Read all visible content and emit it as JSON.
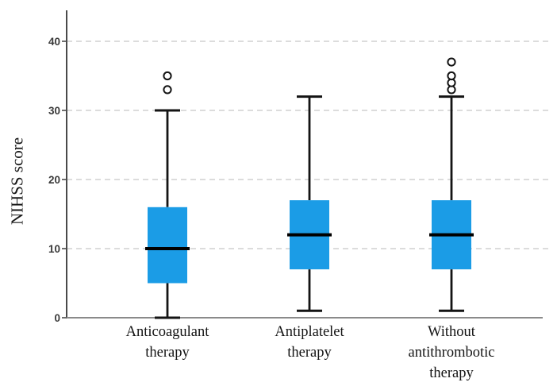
{
  "chart_data": {
    "type": "box",
    "title": "",
    "xlabel": "",
    "ylabel": "NIHSS score",
    "ylim": [
      0,
      44
    ],
    "yticks": [
      0,
      10,
      20,
      30,
      40
    ],
    "grid": "horizontal-dashed",
    "legend": "none",
    "categories": [
      "Anticoagulant therapy",
      "Antiplatelet therapy",
      "Without antithrombotic therapy"
    ],
    "category_label_lines": [
      [
        "Anticoagulant",
        "therapy"
      ],
      [
        "Antiplatelet",
        "therapy"
      ],
      [
        "Without",
        "antithrombotic",
        "therapy"
      ]
    ],
    "series": [
      {
        "name": "Anticoagulant therapy",
        "whisker_low": 0,
        "q1": 5,
        "median": 10,
        "q3": 16,
        "whisker_high": 30,
        "outliers": [
          33,
          35
        ]
      },
      {
        "name": "Antiplatelet therapy",
        "whisker_low": 1,
        "q1": 7,
        "median": 12,
        "q3": 17,
        "whisker_high": 32,
        "outliers": []
      },
      {
        "name": "Without antithrombotic therapy",
        "whisker_low": 1,
        "q1": 7,
        "median": 12,
        "q3": 17,
        "whisker_high": 32,
        "outliers": [
          33,
          34,
          35,
          37
        ]
      }
    ],
    "colors": {
      "box_fill": "#1b9ce6",
      "median_line": "#000000",
      "whisker": "#141414",
      "outlier_stroke": "#141414",
      "outlier_fill": "#ffffff",
      "gridline": "#c8c8c8",
      "axis_left": "#4a4a4a",
      "axis_bottom": "#8a8a8a",
      "tick_label": "#3a3a3a"
    }
  }
}
